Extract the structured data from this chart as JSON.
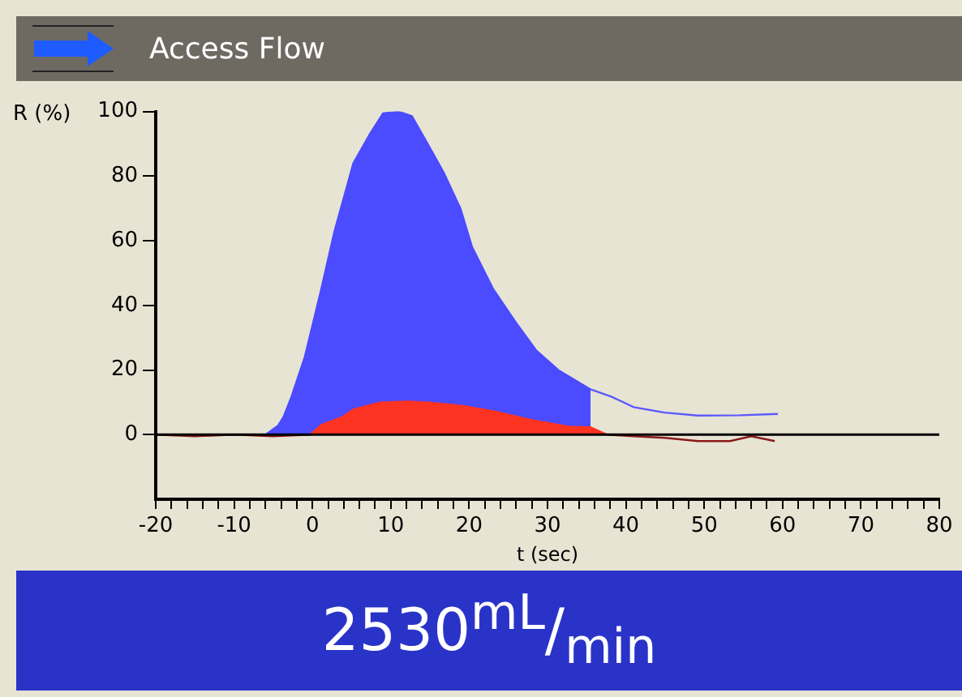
{
  "chart_data": {
    "type": "area",
    "title": "Access Flow",
    "xlabel": "t (sec)",
    "ylabel": "R (%)",
    "annotations": [
      "2530$^{mL}$/$_{min}$"
    ],
    "xlim": [
      -20,
      80
    ],
    "xticks": [
      -20,
      {
        "value": -18,
        "label": null
      },
      {
        "value": -16,
        "label": null
      },
      {
        "value": -14,
        "label": null
      },
      {
        "value": -12,
        "label": null
      },
      -10,
      {
        "value": -8,
        "label": null
      },
      {
        "value": -6,
        "label": null
      },
      {
        "value": -4,
        "label": null
      },
      {
        "value": -2,
        "label": null
      },
      0,
      {
        "value": 2,
        "label": null
      },
      {
        "value": 4,
        "label": null
      },
      {
        "value": 6,
        "label": null
      },
      {
        "value": 8,
        "label": null
      },
      10,
      {
        "value": 12,
        "label": null
      },
      {
        "value": 14,
        "label": null
      },
      {
        "value": 16,
        "label": null
      },
      {
        "value": 18,
        "label": null
      },
      20,
      {
        "value": 22,
        "label": null
      },
      {
        "value": 24,
        "label": null
      },
      {
        "value": 26,
        "label": null
      },
      {
        "value": 28,
        "label": null
      },
      30,
      {
        "value": 32,
        "label": null
      },
      {
        "value": 34,
        "label": null
      },
      {
        "value": 36,
        "label": null
      },
      {
        "value": 38,
        "label": null
      },
      40,
      {
        "value": 42,
        "label": null
      },
      {
        "value": 44,
        "label": null
      },
      {
        "value": 46,
        "label": null
      },
      {
        "value": 48,
        "label": null
      },
      50,
      {
        "value": 52,
        "label": null
      },
      {
        "value": 54,
        "label": null
      },
      {
        "value": 56,
        "label": null
      },
      {
        "value": 58,
        "label": null
      },
      60,
      {
        "value": 62,
        "label": null
      },
      {
        "value": 64,
        "label": null
      },
      {
        "value": 66,
        "label": null
      },
      {
        "value": 68,
        "label": null
      },
      70,
      {
        "value": 72,
        "label": null
      },
      {
        "value": 74,
        "label": null
      },
      {
        "value": 76,
        "label": null
      },
      {
        "value": 78,
        "label": null
      },
      80
    ],
    "ylim": [
      -20,
      100
    ],
    "yticks": [
      0,
      20,
      40,
      60,
      80,
      100
    ],
    "grid": false,
    "legend": false,
    "marker": "none",
    "ref_lines": [
      {
        "axis": "y",
        "value": 0,
        "color": "#000000"
      }
    ],
    "series": [
      {
        "color": "#4b4bff",
        "x": [
          -6,
          -4.4,
          -3.7,
          -2.7,
          -1,
          1.1,
          2.8,
          5.2,
          7.3,
          9,
          11,
          12.7,
          14.8,
          16.8,
          18.9,
          20.4,
          23.1,
          25.9,
          28.6,
          31.4,
          35.5
        ],
        "values": [
          0,
          2.8,
          5.5,
          11.7,
          24,
          45,
          63,
          84,
          93,
          99.5,
          100,
          98.6,
          89.7,
          81,
          70,
          58,
          45,
          35,
          26,
          20,
          14
        ]
      },
      {
        "type": "line",
        "color": "#5a5aff",
        "x": [
          35.5,
          38.2,
          41,
          45,
          49.2,
          54.6,
          59.4
        ],
        "values": [
          14,
          11.7,
          8.5,
          6.8,
          5.9,
          6,
          6.4
        ]
      },
      {
        "color": "#ff3322",
        "x": [
          -0.3,
          1.1,
          3.8,
          5.2,
          8.6,
          12,
          14.8,
          19,
          23.1,
          27.9,
          32.7,
          35.5,
          37.6
        ],
        "values": [
          0,
          3,
          5.5,
          7.8,
          10,
          10.3,
          10,
          9,
          7.3,
          4.6,
          2.5,
          2.3,
          0
        ]
      },
      {
        "type": "line",
        "color": "#8b1a1a",
        "x": [
          -20,
          -15,
          -10,
          -5,
          -0.3,
          null,
          37.6,
          41,
          45,
          49.2,
          53.3,
          56,
          59
        ],
        "values": [
          0,
          -0.5,
          0,
          -0.5,
          0,
          null,
          0,
          -0.5,
          -1,
          -2,
          -2,
          -0.5,
          -2
        ]
      }
    ]
  }
}
